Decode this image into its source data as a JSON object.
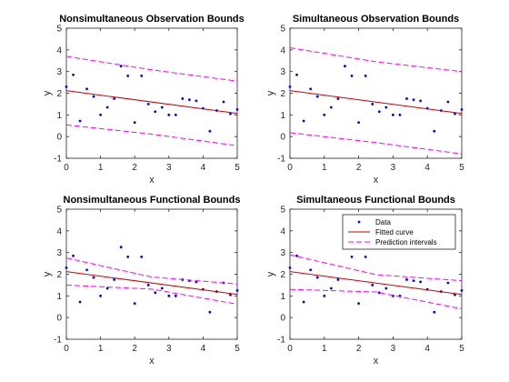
{
  "chart_data": [
    {
      "type": "scatter",
      "title": "Nonsimultaneous Observation Bounds",
      "xlabel": "x",
      "ylabel": "y",
      "xlim": [
        0,
        5
      ],
      "ylim": [
        -1,
        5
      ],
      "xticks": [
        "0",
        "1",
        "2",
        "3",
        "4",
        "5"
      ],
      "yticks": [
        "-1",
        "0",
        "1",
        "2",
        "3",
        "4",
        "5"
      ],
      "grid": false,
      "legend": false,
      "series": [
        {
          "kind": "points",
          "color": "#0000ff",
          "x": [
            0,
            0.2,
            0.4,
            0.6,
            0.8,
            1.0,
            1.2,
            1.4,
            1.6,
            1.8,
            2.0,
            2.2,
            2.4,
            2.6,
            2.8,
            3.0,
            3.2,
            3.4,
            3.6,
            3.8,
            4.0,
            4.2,
            4.4,
            4.6,
            4.8,
            5.0
          ],
          "y": [
            2.3,
            2.85,
            0.72,
            2.2,
            1.85,
            1.0,
            1.35,
            1.75,
            3.25,
            2.8,
            0.65,
            2.8,
            1.5,
            1.15,
            1.35,
            1.0,
            1.0,
            1.75,
            1.7,
            1.65,
            1.3,
            0.25,
            1.2,
            1.6,
            1.05,
            1.25
          ]
        },
        {
          "kind": "line",
          "color": "#cc0000",
          "x": [
            0,
            5
          ],
          "y": [
            2.12,
            1.07
          ]
        },
        {
          "kind": "dash",
          "color": "#ff00ff",
          "x": [
            0,
            2.5,
            5
          ],
          "y": [
            3.7,
            3.08,
            2.56
          ]
        },
        {
          "kind": "dash",
          "color": "#ff00ff",
          "x": [
            0,
            2.5,
            5
          ],
          "y": [
            0.54,
            0.11,
            -0.42
          ]
        }
      ]
    },
    {
      "type": "scatter",
      "title": "Simultaneous Observation Bounds",
      "xlabel": "x",
      "ylabel": "y",
      "xlim": [
        0,
        5
      ],
      "ylim": [
        -1,
        5
      ],
      "xticks": [
        "0",
        "1",
        "2",
        "3",
        "4",
        "5"
      ],
      "yticks": [
        "-1",
        "0",
        "1",
        "2",
        "3",
        "4",
        "5"
      ],
      "grid": false,
      "legend": false,
      "series": [
        {
          "kind": "points",
          "color": "#0000ff",
          "x": [
            0,
            0.2,
            0.4,
            0.6,
            0.8,
            1.0,
            1.2,
            1.4,
            1.6,
            1.8,
            2.0,
            2.2,
            2.4,
            2.6,
            2.8,
            3.0,
            3.2,
            3.4,
            3.6,
            3.8,
            4.0,
            4.2,
            4.4,
            4.6,
            4.8,
            5.0
          ],
          "y": [
            2.3,
            2.85,
            0.72,
            2.2,
            1.85,
            1.0,
            1.35,
            1.75,
            3.25,
            2.8,
            0.65,
            2.8,
            1.5,
            1.15,
            1.35,
            1.0,
            1.0,
            1.75,
            1.7,
            1.65,
            1.3,
            0.25,
            1.2,
            1.6,
            1.05,
            1.25
          ]
        },
        {
          "kind": "line",
          "color": "#cc0000",
          "x": [
            0,
            5
          ],
          "y": [
            2.12,
            1.07
          ]
        },
        {
          "kind": "dash",
          "color": "#ff00ff",
          "x": [
            0,
            2.5,
            5
          ],
          "y": [
            4.1,
            3.45,
            3.0
          ]
        },
        {
          "kind": "dash",
          "color": "#ff00ff",
          "x": [
            0,
            2.5,
            5
          ],
          "y": [
            0.18,
            -0.28,
            -0.8
          ]
        }
      ]
    },
    {
      "type": "scatter",
      "title": "Nonsimultaneous Functional Bounds",
      "xlabel": "x",
      "ylabel": "y",
      "xlim": [
        0,
        5
      ],
      "ylim": [
        -1,
        5
      ],
      "xticks": [
        "0",
        "1",
        "2",
        "3",
        "4",
        "5"
      ],
      "yticks": [
        "-1",
        "0",
        "1",
        "2",
        "3",
        "4",
        "5"
      ],
      "grid": false,
      "legend": false,
      "series": [
        {
          "kind": "points",
          "color": "#0000ff",
          "x": [
            0,
            0.2,
            0.4,
            0.6,
            0.8,
            1.0,
            1.2,
            1.4,
            1.6,
            1.8,
            2.0,
            2.2,
            2.4,
            2.6,
            2.8,
            3.0,
            3.2,
            3.4,
            3.6,
            3.8,
            4.0,
            4.2,
            4.4,
            4.6,
            4.8,
            5.0
          ],
          "y": [
            2.3,
            2.85,
            0.72,
            2.2,
            1.85,
            1.0,
            1.35,
            1.75,
            3.25,
            2.8,
            0.65,
            2.8,
            1.5,
            1.15,
            1.35,
            1.0,
            1.0,
            1.75,
            1.7,
            1.65,
            1.3,
            0.25,
            1.2,
            1.6,
            1.05,
            1.25
          ]
        },
        {
          "kind": "line",
          "color": "#cc0000",
          "x": [
            0,
            5
          ],
          "y": [
            2.12,
            1.07
          ]
        },
        {
          "kind": "dash",
          "color": "#ff00ff",
          "x": [
            0,
            2.5,
            5
          ],
          "y": [
            2.75,
            1.87,
            1.55
          ]
        },
        {
          "kind": "dash",
          "color": "#ff00ff",
          "x": [
            0,
            2.5,
            5
          ],
          "y": [
            1.5,
            1.31,
            0.62
          ]
        }
      ]
    },
    {
      "type": "scatter",
      "title": "Simultaneous Functional Bounds",
      "xlabel": "x",
      "ylabel": "y",
      "xlim": [
        0,
        5
      ],
      "ylim": [
        -1,
        5
      ],
      "xticks": [
        "0",
        "1",
        "2",
        "3",
        "4",
        "5"
      ],
      "yticks": [
        "-1",
        "0",
        "1",
        "2",
        "3",
        "4",
        "5"
      ],
      "grid": false,
      "legend": {
        "placement": "top-right",
        "entries": [
          "Data",
          "Fitted curve",
          "Prediction intervals"
        ]
      },
      "series": [
        {
          "kind": "points",
          "name": "Data",
          "color": "#0000ff",
          "x": [
            0,
            0.2,
            0.4,
            0.6,
            0.8,
            1.0,
            1.2,
            1.4,
            1.6,
            1.8,
            2.0,
            2.2,
            2.4,
            2.6,
            2.8,
            3.0,
            3.2,
            3.4,
            3.6,
            3.8,
            4.0,
            4.2,
            4.4,
            4.6,
            4.8,
            5.0
          ],
          "y": [
            2.3,
            2.85,
            0.72,
            2.2,
            1.85,
            1.0,
            1.35,
            1.75,
            3.25,
            2.8,
            0.65,
            2.8,
            1.5,
            1.15,
            1.35,
            1.0,
            1.0,
            1.75,
            1.7,
            1.65,
            1.3,
            0.25,
            1.2,
            1.6,
            1.05,
            1.25
          ]
        },
        {
          "kind": "line",
          "name": "Fitted curve",
          "color": "#cc0000",
          "x": [
            0,
            5
          ],
          "y": [
            2.12,
            1.07
          ]
        },
        {
          "kind": "dash",
          "name": "Prediction intervals",
          "color": "#ff00ff",
          "x": [
            0,
            2.5,
            5
          ],
          "y": [
            2.9,
            1.98,
            1.7
          ]
        },
        {
          "kind": "dash",
          "color": "#ff00ff",
          "x": [
            0,
            2.5,
            5
          ],
          "y": [
            1.3,
            1.18,
            0.4
          ]
        }
      ]
    }
  ]
}
